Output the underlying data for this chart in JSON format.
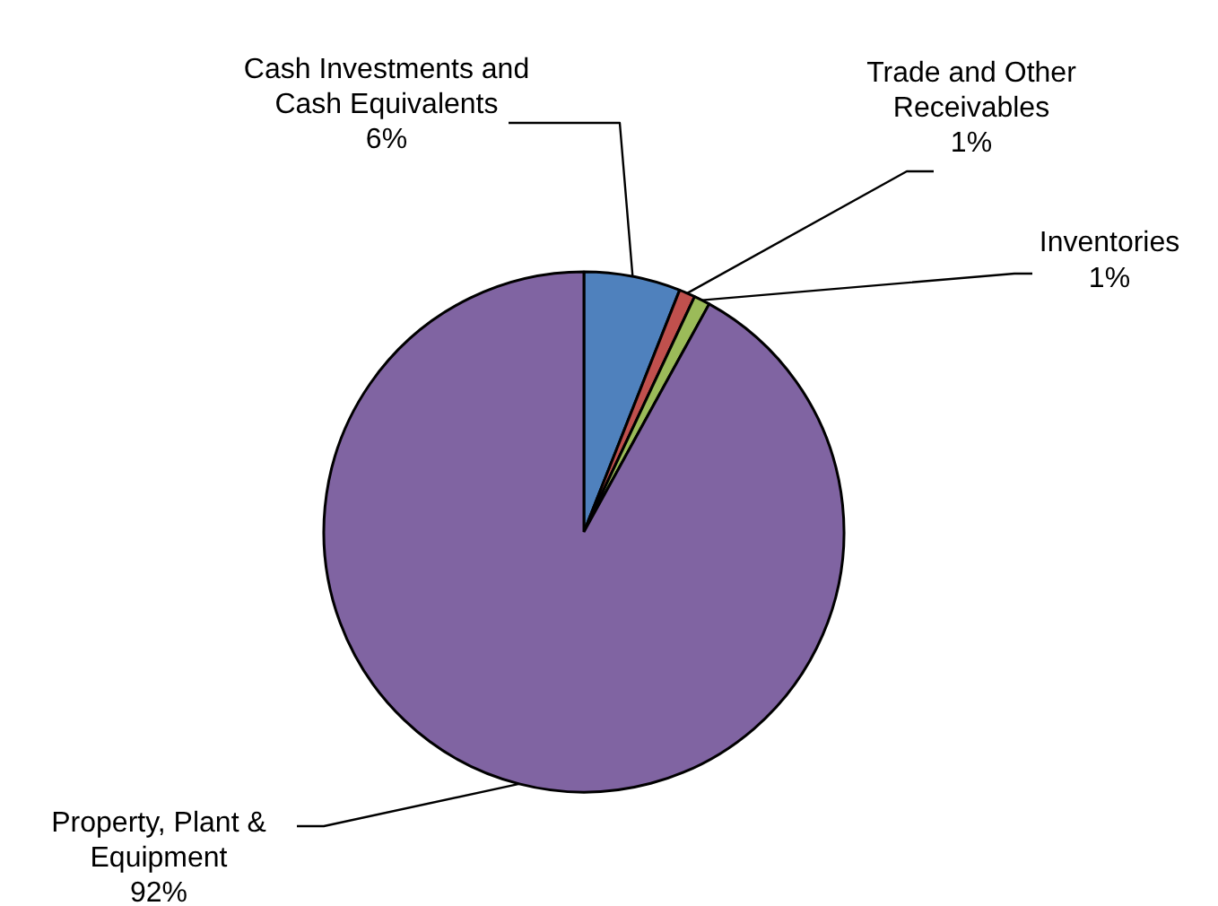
{
  "chart_data": {
    "type": "pie",
    "categories": [
      "Cash Investments and\nCash Equivalents",
      "Trade and Other\nReceivables",
      "Inventories",
      "Property, Plant &\nEquipment"
    ],
    "values": [
      6,
      1,
      1,
      92
    ],
    "value_labels": [
      "6%",
      "1%",
      "1%",
      "92%"
    ],
    "colors": [
      "#4f81bd",
      "#c0504d",
      "#9bbb59",
      "#8064a2"
    ]
  }
}
